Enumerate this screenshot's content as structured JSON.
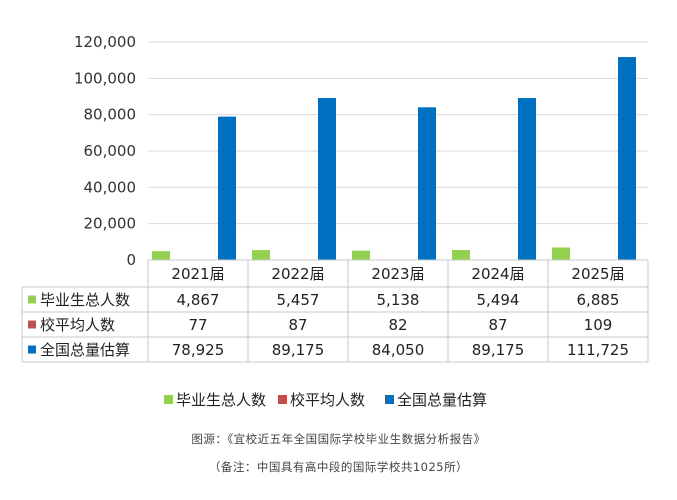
{
  "chart_data": {
    "type": "bar",
    "categories": [
      "2021届",
      "2022届",
      "2023届",
      "2024届",
      "2025届"
    ],
    "series": [
      {
        "name": "毕业生总人数",
        "values": [
          4867,
          5457,
          5138,
          5494,
          6885
        ],
        "labels": [
          "4,867",
          "5,457",
          "5,138",
          "5,494",
          "6,885"
        ],
        "color": "#92d050"
      },
      {
        "name": "校平均人数",
        "values": [
          77,
          87,
          82,
          87,
          109
        ],
        "labels": [
          "77",
          "87",
          "82",
          "87",
          "109"
        ],
        "color": "#c0504d"
      },
      {
        "name": "全国总量估算",
        "values": [
          78925,
          89175,
          84050,
          89175,
          111725
        ],
        "labels": [
          "78,925",
          "89,175",
          "84,050",
          "89,175",
          "111,725"
        ],
        "color": "#0070c0"
      }
    ],
    "yticks": [
      "0",
      "20,000",
      "40,000",
      "60,000",
      "80,000",
      "100,000",
      "120,000"
    ],
    "ylim": [
      0,
      120000
    ],
    "grid": true,
    "legend": "bottom",
    "data_table": true
  },
  "source": "图源：《宜校近五年全国国际学校毕业生数据分析报告》",
  "note": "（备注：中国具有高中段的国际学校共1025所）"
}
